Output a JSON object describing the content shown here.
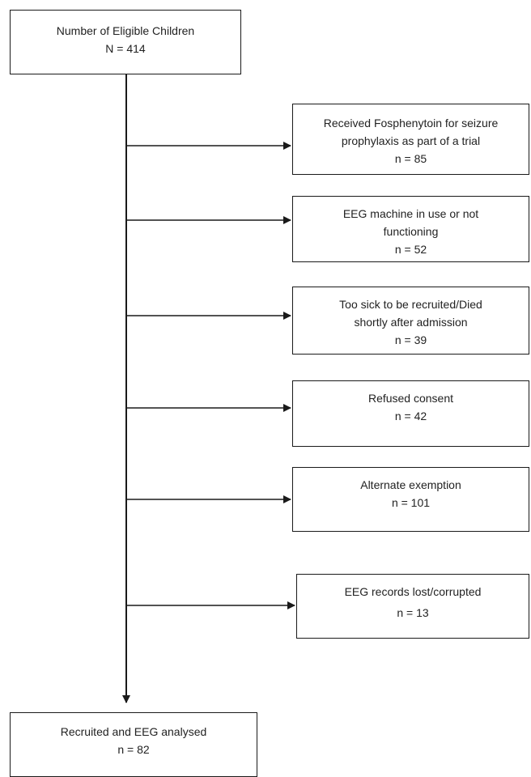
{
  "start": {
    "label": "Number of Eligible Children",
    "count": "N = 414"
  },
  "exclusions": [
    {
      "lines": [
        "Received Fosphenytoin for seizure",
        "prophylaxis as part of a trial"
      ],
      "count": "n = 85"
    },
    {
      "lines": [
        "EEG machine in use or not",
        "functioning"
      ],
      "count": "n = 52"
    },
    {
      "lines": [
        "Too sick to be recruited/Died",
        "shortly after admission"
      ],
      "count": "n = 39"
    },
    {
      "lines": [
        "Refused consent"
      ],
      "count": "n = 42"
    },
    {
      "lines": [
        "Alternate exemption"
      ],
      "count": "n = 101"
    },
    {
      "lines": [
        "EEG records lost/corrupted"
      ],
      "count": "n = 13"
    }
  ],
  "end": {
    "label": "Recruited and EEG analysed",
    "count": "n = 82"
  }
}
